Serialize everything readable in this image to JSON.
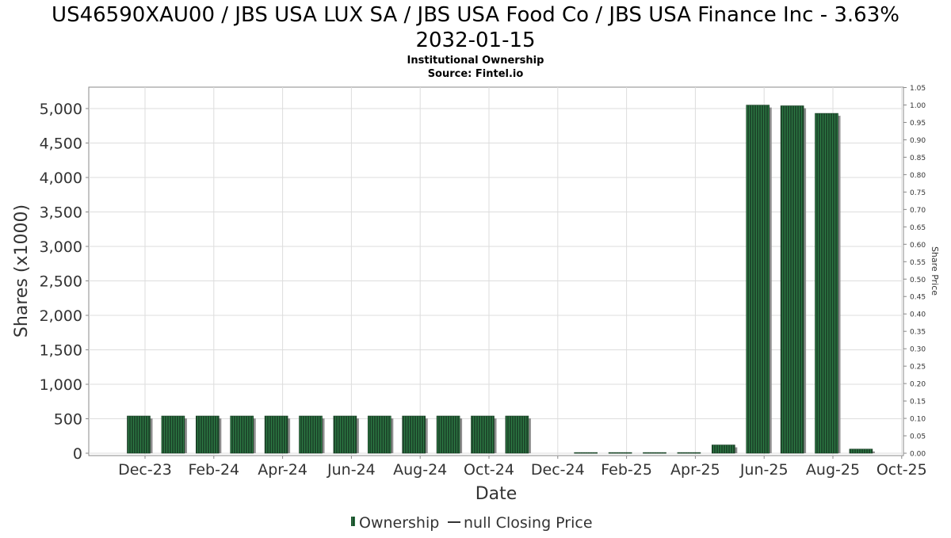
{
  "chart_data": {
    "type": "bar",
    "title": "US46590XAU00 / JBS USA LUX SA / JBS USA Food Co / JBS USA Finance Inc - 3.63% 2032-01-15",
    "title_lines": [
      "US46590XAU00 / JBS USA LUX SA / JBS USA Food Co / JBS USA Finance Inc - 3.63%",
      "2032-01-15"
    ],
    "subtitle_lines": [
      "Institutional Ownership",
      "Source: Fintel.io"
    ],
    "xlabel": "Date",
    "ylabel": "Shares (x1000)",
    "y2label": "Share Price",
    "ylim": [
      0,
      5300
    ],
    "y2lim": [
      0,
      1.05
    ],
    "grid": true,
    "legend_position": "bottom-center",
    "xticks": [
      "Dec-23",
      "Feb-24",
      "Apr-24",
      "Jun-24",
      "Aug-24",
      "Oct-24",
      "Dec-24",
      "Feb-25",
      "Apr-25",
      "Jun-25",
      "Aug-25",
      "Oct-25"
    ],
    "yticks": [
      "0",
      "500",
      "1,000",
      "1,500",
      "2,000",
      "2,500",
      "3,000",
      "3,500",
      "4,000",
      "4,500",
      "5,000"
    ],
    "y2ticks": [
      "0.00",
      "0.05",
      "0.10",
      "0.15",
      "0.20",
      "0.25",
      "0.30",
      "0.35",
      "0.40",
      "0.45",
      "0.50",
      "0.55",
      "0.60",
      "0.65",
      "0.70",
      "0.75",
      "0.80",
      "0.85",
      "0.90",
      "0.95",
      "1.00",
      "1.05"
    ],
    "categories": [
      "2023-12",
      "2024-01",
      "2024-02",
      "2024-03",
      "2024-04",
      "2024-05",
      "2024-06",
      "2024-07",
      "2024-08",
      "2024-09",
      "2024-10",
      "2024-11",
      "2024-12",
      "2025-01",
      "2025-02",
      "2025-03",
      "2025-04",
      "2025-05",
      "2025-06",
      "2025-07",
      "2025-08",
      "2025-09"
    ],
    "series": [
      {
        "name": "Ownership",
        "values": [
          540,
          540,
          540,
          540,
          540,
          540,
          540,
          540,
          540,
          540,
          540,
          540,
          0,
          10,
          10,
          10,
          10,
          120,
          5050,
          5040,
          4930,
          60
        ]
      }
    ],
    "legend": {
      "ownership_label": "Ownership",
      "price_label": "null Closing Price"
    },
    "colors": {
      "bar_fill": "#1d4a2c",
      "bar_stripe": "#2d7a44",
      "bar_shadow": "#8c8c8c",
      "grid": "#dddddd",
      "axis": "#888888"
    }
  }
}
